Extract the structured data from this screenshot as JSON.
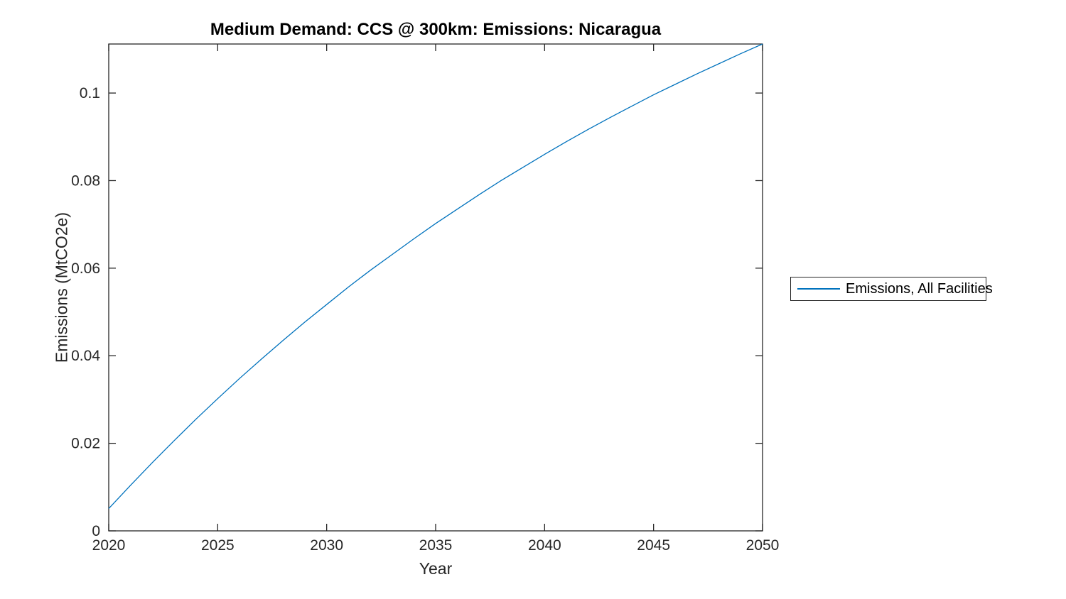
{
  "figure": {
    "title": "Medium Demand: CCS @ 300km: Emissions: Nicaragua"
  },
  "chart_data": {
    "type": "line",
    "title": "Medium Demand: CCS @ 300km: Emissions: Nicaragua",
    "xlabel": "Year",
    "ylabel": "Emissions (MtCO2e)",
    "xlim": [
      2020,
      2050
    ],
    "ylim": [
      0,
      0.1112
    ],
    "xticks": [
      2020,
      2025,
      2030,
      2035,
      2040,
      2045,
      2050
    ],
    "xtick_labels": [
      "2020",
      "2025",
      "2030",
      "2035",
      "2040",
      "2045",
      "2050"
    ],
    "yticks": [
      0,
      0.02,
      0.04,
      0.06,
      0.08,
      0.1
    ],
    "ytick_labels": [
      "0",
      "0.02",
      "0.04",
      "0.06",
      "0.08",
      "0.1"
    ],
    "grid": false,
    "box": true,
    "axis_color": "#262626",
    "legend_position": "right-outside",
    "x": [
      2020,
      2021,
      2022,
      2023,
      2024,
      2025,
      2026,
      2027,
      2028,
      2029,
      2030,
      2031,
      2032,
      2033,
      2034,
      2035,
      2036,
      2037,
      2038,
      2039,
      2040,
      2041,
      2042,
      2043,
      2044,
      2045,
      2046,
      2047,
      2048,
      2049,
      2050
    ],
    "series": [
      {
        "name": "Emissions, All Facilities",
        "color": "#0072BD",
        "values": [
          0.0051,
          0.0104,
          0.0156,
          0.0206,
          0.0255,
          0.0302,
          0.0348,
          0.0392,
          0.0435,
          0.0477,
          0.0517,
          0.0557,
          0.0595,
          0.0631,
          0.0667,
          0.0702,
          0.0735,
          0.0768,
          0.08,
          0.083,
          0.086,
          0.0889,
          0.0917,
          0.0944,
          0.097,
          0.0996,
          0.102,
          0.1044,
          0.1067,
          0.109,
          0.1112
        ]
      }
    ]
  }
}
